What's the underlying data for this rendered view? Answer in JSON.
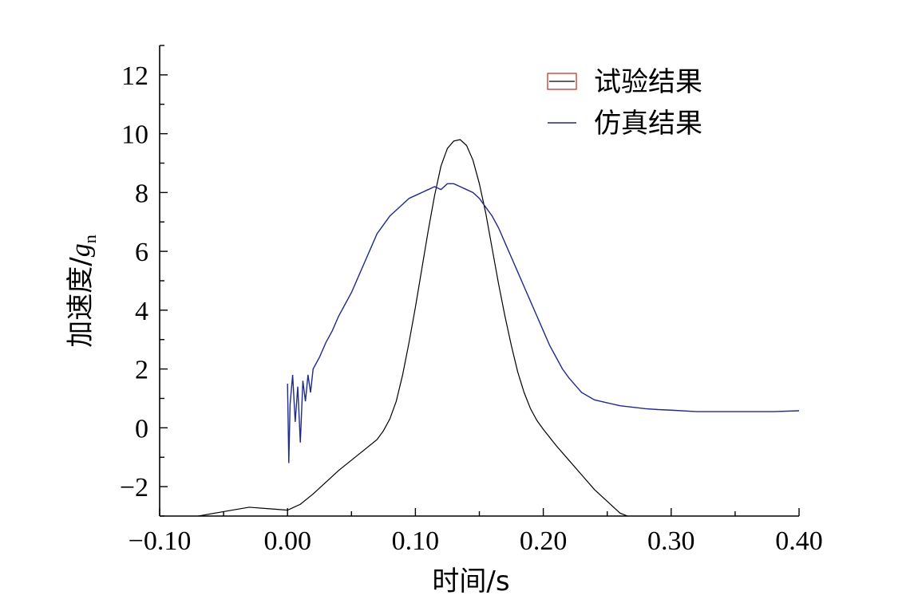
{
  "chart_data": {
    "type": "line",
    "title": "",
    "xlabel": "时间/s",
    "ylabel_main": "加速度/",
    "ylabel_unit_symbol": "g",
    "ylabel_unit_subscript": "n",
    "xlim": [
      -0.1,
      0.4
    ],
    "ylim": [
      -3,
      13
    ],
    "xticks": [
      -0.1,
      0.0,
      0.1,
      0.2,
      0.3,
      0.4
    ],
    "xtick_labels": [
      "−0.10",
      "0.00",
      "0.10",
      "0.20",
      "0.30",
      "0.40"
    ],
    "yticks": [
      -2,
      0,
      2,
      4,
      6,
      8,
      10,
      12
    ],
    "ytick_labels": [
      "−2",
      "0",
      "2",
      "4",
      "6",
      "8",
      "10",
      "12"
    ],
    "legend_position": "top-right",
    "colors": {
      "series_black": "#000000",
      "series_blue": "#1f2a8a",
      "legend_swatch_red": "#c0392b"
    },
    "series": [
      {
        "name": "试验结果",
        "color": "#000000",
        "x": [
          -0.07,
          -0.05,
          -0.03,
          -0.015,
          0.0,
          0.01,
          0.02,
          0.03,
          0.04,
          0.05,
          0.06,
          0.07,
          0.075,
          0.08,
          0.085,
          0.09,
          0.095,
          0.1,
          0.105,
          0.11,
          0.115,
          0.12,
          0.125,
          0.13,
          0.135,
          0.14,
          0.145,
          0.15,
          0.155,
          0.16,
          0.165,
          0.17,
          0.175,
          0.18,
          0.185,
          0.19,
          0.195,
          0.2,
          0.21,
          0.22,
          0.23,
          0.24,
          0.25,
          0.26,
          0.266
        ],
        "y": [
          -3.0,
          -2.85,
          -2.7,
          -2.75,
          -2.8,
          -2.6,
          -2.25,
          -1.85,
          -1.45,
          -1.1,
          -0.75,
          -0.4,
          -0.1,
          0.3,
          0.9,
          1.8,
          2.9,
          4.1,
          5.4,
          6.7,
          7.9,
          8.9,
          9.5,
          9.75,
          9.8,
          9.6,
          9.1,
          8.3,
          7.3,
          6.1,
          4.9,
          3.8,
          2.8,
          1.9,
          1.2,
          0.65,
          0.25,
          -0.05,
          -0.6,
          -1.1,
          -1.6,
          -2.1,
          -2.5,
          -2.9,
          -3.0
        ]
      },
      {
        "name": "仿真结果",
        "color": "#1f2a8a",
        "x": [
          0.0,
          0.001,
          0.002,
          0.004,
          0.006,
          0.008,
          0.01,
          0.012,
          0.014,
          0.016,
          0.018,
          0.02,
          0.025,
          0.03,
          0.035,
          0.04,
          0.045,
          0.05,
          0.055,
          0.06,
          0.065,
          0.07,
          0.075,
          0.08,
          0.085,
          0.09,
          0.095,
          0.1,
          0.105,
          0.11,
          0.115,
          0.12,
          0.125,
          0.13,
          0.135,
          0.14,
          0.145,
          0.15,
          0.155,
          0.16,
          0.165,
          0.17,
          0.175,
          0.18,
          0.185,
          0.19,
          0.195,
          0.2,
          0.205,
          0.21,
          0.215,
          0.22,
          0.225,
          0.23,
          0.24,
          0.25,
          0.26,
          0.27,
          0.28,
          0.29,
          0.3,
          0.32,
          0.34,
          0.36,
          0.38,
          0.4
        ],
        "y": [
          1.5,
          -1.2,
          0.8,
          1.8,
          0.2,
          1.4,
          -0.5,
          1.6,
          0.9,
          1.8,
          1.2,
          2.0,
          2.4,
          2.9,
          3.3,
          3.8,
          4.2,
          4.6,
          5.1,
          5.6,
          6.1,
          6.6,
          6.9,
          7.2,
          7.4,
          7.6,
          7.8,
          7.9,
          8.0,
          8.1,
          8.2,
          8.1,
          8.3,
          8.3,
          8.2,
          8.1,
          8.0,
          7.8,
          7.5,
          7.2,
          6.8,
          6.3,
          5.8,
          5.3,
          4.8,
          4.3,
          3.8,
          3.3,
          2.8,
          2.4,
          2.0,
          1.7,
          1.45,
          1.2,
          0.95,
          0.85,
          0.75,
          0.7,
          0.65,
          0.62,
          0.6,
          0.55,
          0.55,
          0.55,
          0.55,
          0.58
        ]
      }
    ]
  }
}
